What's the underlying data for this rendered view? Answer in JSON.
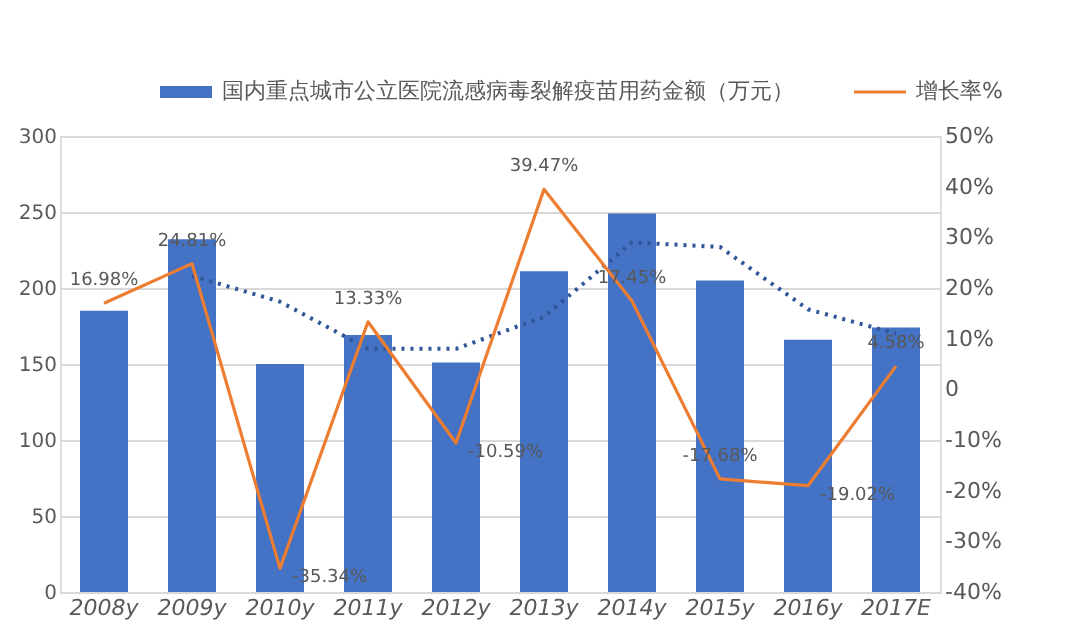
{
  "chart_data": {
    "type": "bar",
    "categories": [
      "2008y",
      "2009y",
      "2010y",
      "2011y",
      "2012y",
      "2013y",
      "2014y",
      "2015y",
      "2016y",
      "2017E"
    ],
    "series": [
      {
        "name": "国内重点城市公立医院流感病毒裂解疫苗用药金额（万元）",
        "color": "#4472c4",
        "values": [
          185,
          232,
          150,
          169,
          151,
          211,
          249,
          205,
          166,
          174
        ]
      },
      {
        "type": "line",
        "color": "#2f5597",
        "line_style": "dotted",
        "values": [
          null,
          208,
          191,
          160,
          160,
          181,
          230,
          227,
          186,
          170
        ]
      },
      {
        "name": "增长率%",
        "type": "line",
        "line_style": "solid",
        "axis": "y2",
        "color": "#ed7d31",
        "values": [
          16.98,
          24.81,
          -35.34,
          13.33,
          -10.59,
          39.47,
          17.45,
          -17.68,
          -19.02,
          4.58
        ],
        "value_labels": [
          "16.98%",
          "24.81%",
          "-35.34%",
          "13.33%",
          "-10.59%",
          "39.47%",
          "17.45%",
          "-17.68%",
          "-19.02%",
          "4.58%"
        ]
      }
    ],
    "ylim": [
      0,
      300
    ],
    "yticks": [
      0,
      50,
      100,
      150,
      200,
      250,
      300
    ],
    "y2lim": [
      -40,
      50
    ],
    "y2ticks": [
      {
        "value": -40,
        "label": "-40%"
      },
      {
        "value": -30,
        "label": "-30%"
      },
      {
        "value": -20,
        "label": "-20%"
      },
      {
        "value": -10,
        "label": "-10%"
      },
      0,
      {
        "value": 10,
        "label": "10%"
      },
      {
        "value": 20,
        "label": "20%"
      },
      {
        "value": 30,
        "label": "30%"
      },
      {
        "value": 40,
        "label": "40%"
      },
      {
        "value": 50,
        "label": "50%"
      }
    ],
    "grid": "y",
    "legend": "top"
  }
}
